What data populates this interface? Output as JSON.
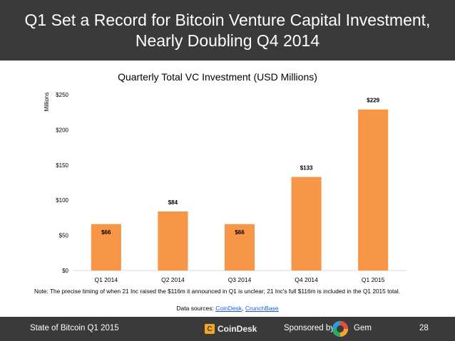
{
  "header": {
    "title_line1": "Q1 Set a Record for Bitcoin Venture Capital Investment,",
    "title_line2": "Nearly Doubling Q4 2014"
  },
  "chart_data": {
    "type": "bar",
    "title": "Quarterly Total VC Investment (USD Millions)",
    "ylabel": "Millions",
    "xlabel": "",
    "categories": [
      "Q1 2014",
      "Q2 2014",
      "Q3 2014",
      "Q4 2014",
      "Q1 2015"
    ],
    "values": [
      66,
      84,
      66,
      133,
      229
    ],
    "data_labels": [
      "$66",
      "$84",
      "$66",
      "$133",
      "$229"
    ],
    "ylim": [
      0,
      250
    ],
    "yticks": [
      0,
      50,
      100,
      150,
      200,
      250
    ],
    "ytick_labels": [
      "$0",
      "$50",
      "$100",
      "$150",
      "$200",
      "$250"
    ],
    "grid": false,
    "legend": "none",
    "bar_color": "#f79646"
  },
  "note": "Note: The precise timing of when 21 Inc raised the $116m it announced in Q1 is unclear; 21 Inc's full $116m is included in the Q1 2015 total.",
  "sources": {
    "prefix": "Data sources: ",
    "link1": "CoinDesk",
    "separator": ", ",
    "link2": "CrunchBase"
  },
  "footer": {
    "left_text": "State of Bitcoin Q1 2015",
    "brand_icon": "coindesk-icon",
    "brand_text": "CoinDesk",
    "sponsored_text": "Sponsored by",
    "sponsor_icon": "gem-logo-icon",
    "sponsor_name": "Gem",
    "page_number": "28"
  },
  "colors": {
    "header_bg": "#3a3a3a",
    "footer_bg": "#3a3a3a",
    "bar": "#f79646",
    "link": "#1a5bd6"
  }
}
